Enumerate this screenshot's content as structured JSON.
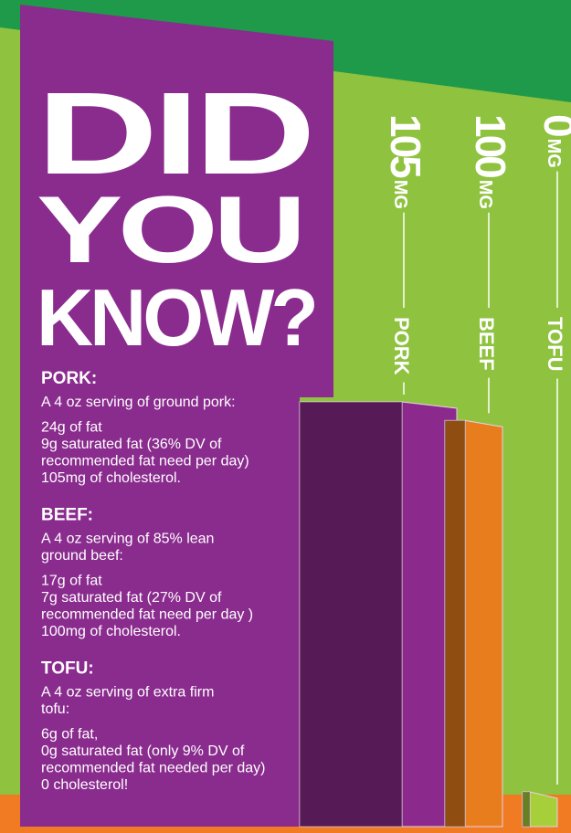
{
  "header": {
    "lines": [
      "DID",
      "YOU",
      "KNOW?"
    ]
  },
  "facts": [
    {
      "heading": "PORK:",
      "intro": [
        "A 4 oz serving of ground pork:"
      ],
      "details": [
        "24g of fat",
        "9g saturated fat (36% DV of",
        "recommended fat need per day)",
        "105mg of cholesterol."
      ]
    },
    {
      "heading": "BEEF:",
      "intro": [
        "A 4 oz serving of 85% lean",
        "ground beef:"
      ],
      "details": [
        "17g of fat",
        "7g saturated fat  (27% DV of",
        "recommended fat need per day )",
        "100mg of cholesterol."
      ]
    },
    {
      "heading": "TOFU:",
      "intro": [
        "A 4 oz serving of extra firm",
        "tofu:"
      ],
      "details": [
        "6g of fat,",
        "0g saturated fat  (only 9% DV of",
        "recommended fat needed per day)",
        "0 cholesterol!"
      ]
    }
  ],
  "chart_data": {
    "type": "bar",
    "categories": [
      "PORK",
      "BEEF",
      "TOFU"
    ],
    "values": [
      105,
      100,
      0
    ],
    "unit": "MG",
    "colors": [
      "#8b2a8c",
      "#e87d1e",
      "#a6cf3a"
    ]
  }
}
